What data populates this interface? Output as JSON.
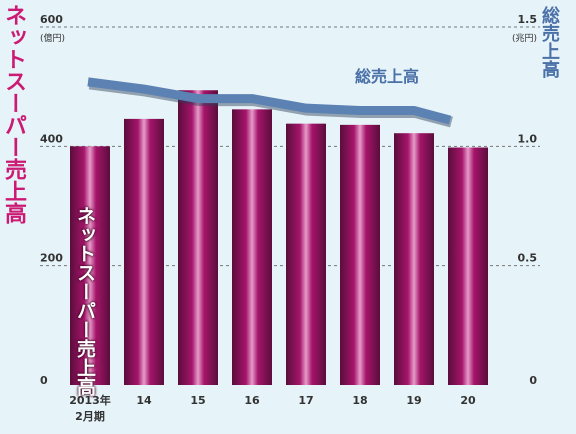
{
  "colors": {
    "background": "#e6f3f8",
    "bar_dark": "#5a0d3c",
    "bar_mid": "#a5156a",
    "bar_light": "#e79bca",
    "bar_label": "#cc1a74",
    "line": "#5c82b3",
    "line_label": "#4a70a8",
    "axis_text": "#333333",
    "grid": "#777777"
  },
  "chart_data": {
    "type": "bar",
    "categories": [
      "2013年\n2月期",
      "14",
      "15",
      "16",
      "17",
      "18",
      "19",
      "20"
    ],
    "category_ticks": [
      {
        "line1": "2013年",
        "line2": "2月期"
      },
      {
        "line1": "14",
        "line2": ""
      },
      {
        "line1": "15",
        "line2": ""
      },
      {
        "line1": "16",
        "line2": ""
      },
      {
        "line1": "17",
        "line2": ""
      },
      {
        "line1": "18",
        "line2": ""
      },
      {
        "line1": "19",
        "line2": ""
      },
      {
        "line1": "20",
        "line2": ""
      }
    ],
    "series": [
      {
        "name": "ネットスーパー売上高",
        "type": "bar",
        "axis": "left",
        "values": [
          400,
          446,
          494,
          462,
          438,
          436,
          422,
          398
        ]
      },
      {
        "name": "総売上高",
        "type": "line",
        "axis": "right",
        "values": [
          1.27,
          1.24,
          1.2,
          1.2,
          1.16,
          1.15,
          1.15,
          1.11
        ]
      }
    ],
    "y_left": {
      "label": "ネットスーパー売上高",
      "unit": "(億円)",
      "range": [
        0,
        600
      ],
      "ticks": [
        0,
        200,
        400,
        600
      ]
    },
    "y_right": {
      "label": "総売上高",
      "unit": "(兆円)",
      "range": [
        0,
        1.5
      ],
      "ticks": [
        "0",
        "0.5",
        "1.0",
        "1.5"
      ]
    },
    "grid": "dashed"
  }
}
